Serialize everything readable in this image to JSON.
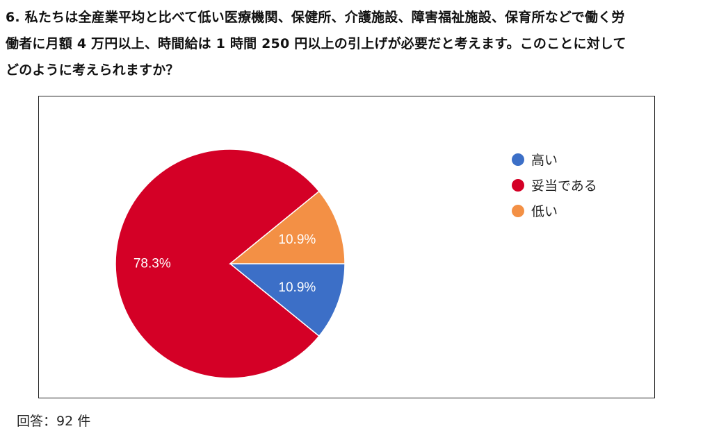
{
  "question": {
    "lines": [
      "6. 私たちは全産業平均と比べて低い医療機関、保健所、介護施設、障害福祉施設、保育所などで働く労",
      "働者に月額 4 万円以上、時間給は 1 時間 250 円以上の引上げが必要だと考えます。このことに対して",
      "どのように考えられますか？"
    ]
  },
  "chart_data": {
    "type": "pie",
    "categories": [
      "高い",
      "妥当である",
      "低い"
    ],
    "values": [
      10.9,
      78.3,
      10.9
    ],
    "labels": [
      "10.9%",
      "78.3%",
      "10.9%"
    ],
    "colors": [
      "#3c6fc7",
      "#d40026",
      "#f39045"
    ],
    "legend_placement": "right",
    "start": "3 o'clock",
    "direction": "clockwise"
  },
  "footer": {
    "text": "回答：92 件"
  }
}
